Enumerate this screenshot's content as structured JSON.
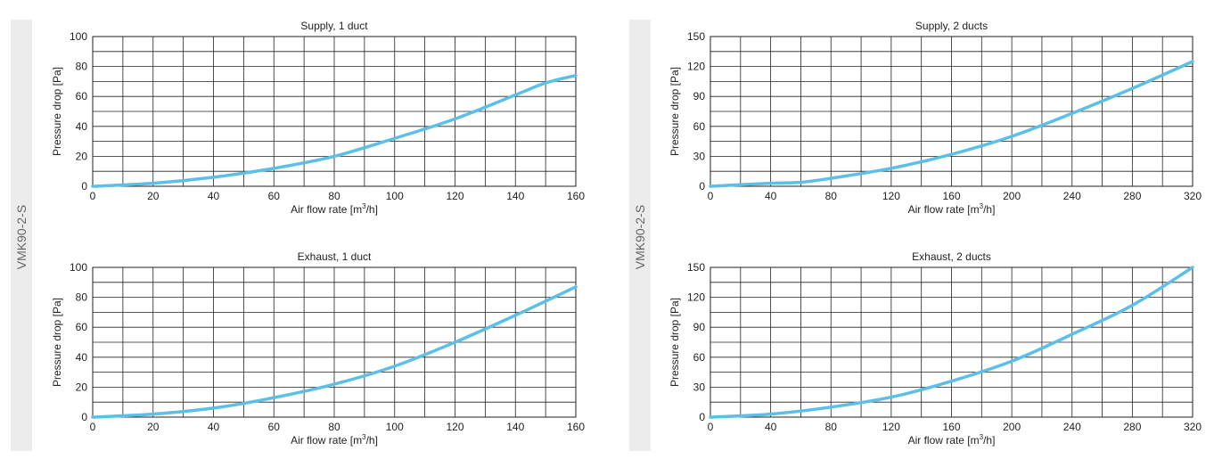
{
  "side_labels": [
    "VMK90-2-S",
    "VMK90-2-S"
  ],
  "colors": {
    "curve": "#5bbfe8",
    "grid": "#222222",
    "band": "#ececec"
  },
  "chart_data": [
    {
      "type": "line",
      "title": "Supply, 1 duct",
      "xlabel": "Air flow rate [m³/h]",
      "ylabel": "Pressure drop [Pa]",
      "xlim": [
        0,
        160
      ],
      "ylim": [
        0,
        100
      ],
      "xticks": [
        0,
        20,
        40,
        60,
        80,
        100,
        120,
        140,
        160
      ],
      "yticks": [
        0,
        20,
        40,
        60,
        80,
        100
      ],
      "grid": true,
      "series": [
        {
          "x": [
            0,
            20,
            40,
            60,
            80,
            100,
            120,
            140,
            150,
            160
          ],
          "y": [
            0,
            2,
            6,
            12,
            20,
            32,
            45,
            61,
            69,
            74
          ]
        }
      ]
    },
    {
      "type": "line",
      "title": "Exhaust, 1 duct",
      "xlabel": "Air flow rate [m³/h]",
      "ylabel": "Pressure drop [Pa]",
      "xlim": [
        0,
        160
      ],
      "ylim": [
        0,
        100
      ],
      "xticks": [
        0,
        20,
        40,
        60,
        80,
        100,
        120,
        140,
        160
      ],
      "yticks": [
        0,
        20,
        40,
        60,
        80,
        100
      ],
      "grid": true,
      "series": [
        {
          "x": [
            0,
            20,
            40,
            60,
            80,
            100,
            120,
            140,
            160
          ],
          "y": [
            0,
            2,
            6,
            13,
            22,
            34,
            50,
            68,
            87
          ]
        }
      ]
    },
    {
      "type": "line",
      "title": "Supply, 2 ducts",
      "xlabel": "Air flow rate [m³/h]",
      "ylabel": "Pressure drop [Pa]",
      "xlim": [
        0,
        320
      ],
      "ylim": [
        0,
        150
      ],
      "xticks": [
        0,
        40,
        80,
        120,
        160,
        200,
        240,
        280,
        320
      ],
      "yticks": [
        0,
        30,
        60,
        90,
        120,
        150
      ],
      "grid": true,
      "series": [
        {
          "x": [
            0,
            40,
            60,
            80,
            120,
            160,
            200,
            240,
            280,
            320
          ],
          "y": [
            0,
            3,
            4,
            8,
            18,
            32,
            50,
            73,
            98,
            125
          ]
        }
      ]
    },
    {
      "type": "line",
      "title": "Exhaust, 2 ducts",
      "xlabel": "Air flow rate [m³/h]",
      "ylabel": "Pressure drop [Pa]",
      "xlim": [
        0,
        320
      ],
      "ylim": [
        0,
        150
      ],
      "xticks": [
        0,
        40,
        80,
        120,
        160,
        200,
        240,
        280,
        320
      ],
      "yticks": [
        0,
        30,
        60,
        90,
        120,
        150
      ],
      "grid": true,
      "series": [
        {
          "x": [
            0,
            40,
            80,
            120,
            160,
            200,
            240,
            280,
            320
          ],
          "y": [
            0,
            3,
            10,
            20,
            36,
            56,
            83,
            112,
            150
          ]
        }
      ]
    }
  ]
}
